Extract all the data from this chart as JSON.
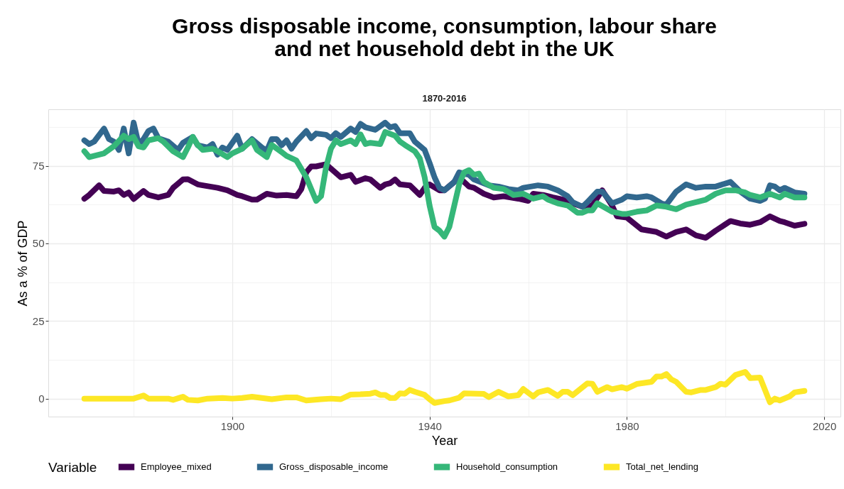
{
  "chart_data": {
    "type": "line",
    "title": "Gross disposable income, consumption, labour share\nand net household debt in the UK",
    "subtitle": "1870-2016",
    "xlabel": "Year",
    "ylabel": "As a % of GDP",
    "legend_title": "Variable",
    "legend": "bottom",
    "grid": true,
    "xlim": [
      1862.7,
      2023.3
    ],
    "ylim": [
      -5.8,
      93.2
    ],
    "xticks": [
      {
        "value": 1880,
        "label": null
      },
      1900,
      {
        "value": 1920,
        "label": null
      },
      1940,
      {
        "value": 1960,
        "label": null
      },
      1980,
      {
        "value": 2000,
        "label": null
      },
      2020
    ],
    "yticks": [
      0,
      {
        "value": 12.5,
        "label": null
      },
      25,
      {
        "value": 37.5,
        "label": null
      },
      50,
      {
        "value": 62.5,
        "label": null
      },
      75,
      {
        "value": 87.5,
        "label": null
      }
    ],
    "series": [
      {
        "name": "Employee_mixed",
        "color": "#440154",
        "x": [
          1870,
          1871,
          1873,
          1874,
          1876,
          1877,
          1878,
          1879,
          1880,
          1882,
          1883,
          1885,
          1887,
          1888,
          1890,
          1891,
          1893,
          1894,
          1897,
          1899,
          1901,
          1902,
          1904,
          1905,
          1907,
          1909,
          1911,
          1913,
          1914,
          1915,
          1916,
          1917,
          1919,
          1922,
          1924,
          1925,
          1927,
          1928,
          1930,
          1931,
          1932,
          1933,
          1934,
          1936,
          1938,
          1939,
          1940,
          1942,
          1943,
          1945,
          1946,
          1948,
          1949,
          1951,
          1953,
          1955,
          1958,
          1960,
          1961,
          1963,
          1965,
          1967,
          1969,
          1971,
          1973,
          1975,
          1977,
          1978,
          1980,
          1983,
          1986,
          1988,
          1990,
          1992,
          1994,
          1996,
          1998,
          2001,
          2003,
          2005,
          2007,
          2009,
          2011,
          2012,
          2014,
          2016
        ],
        "values": [
          64.4,
          65.6,
          68.7,
          66.9,
          66.7,
          67.1,
          65.6,
          66.4,
          64.3,
          66.9,
          65.6,
          64.8,
          65.6,
          67.9,
          70.6,
          70.7,
          69.0,
          68.7,
          67.9,
          67.1,
          65.6,
          65.2,
          64.1,
          64.1,
          66.0,
          65.4,
          65.6,
          65.2,
          67.5,
          72.9,
          74.8,
          74.8,
          75.5,
          71.3,
          72.1,
          69.8,
          71.0,
          70.6,
          67.9,
          69.0,
          69.4,
          70.6,
          69.0,
          68.7,
          65.6,
          67.9,
          69.0,
          67.1,
          67.1,
          69.8,
          71.3,
          68.3,
          67.9,
          66.0,
          64.8,
          65.2,
          64.4,
          63.7,
          66.0,
          65.6,
          64.8,
          64.1,
          62.9,
          61.8,
          62.2,
          67.1,
          62.2,
          58.7,
          58.3,
          54.5,
          53.7,
          52.2,
          53.7,
          54.5,
          52.6,
          51.8,
          54.1,
          57.2,
          56.4,
          56.0,
          56.8,
          58.7,
          57.2,
          56.8,
          55.7,
          56.3
        ]
      },
      {
        "name": "Gross_disposable_income",
        "color": "#31688e",
        "x": [
          1870,
          1871,
          1872,
          1874,
          1875,
          1876,
          1877,
          1878,
          1879,
          1880,
          1881,
          1882,
          1883,
          1884,
          1885,
          1887,
          1889,
          1890,
          1892,
          1893,
          1895,
          1896,
          1897,
          1898,
          1899,
          1901,
          1902,
          1904,
          1906,
          1907,
          1908,
          1909,
          1910,
          1911,
          1912,
          1913,
          1915,
          1916,
          1917,
          1919,
          1920,
          1921,
          1922,
          1924,
          1925,
          1926,
          1927,
          1929,
          1931,
          1932,
          1933,
          1934,
          1936,
          1937,
          1939,
          1940,
          1941,
          1942,
          1943,
          1945,
          1946,
          1948,
          1949,
          1952,
          1954,
          1956,
          1958,
          1959,
          1962,
          1964,
          1966,
          1968,
          1969,
          1971,
          1972,
          1974,
          1975,
          1977,
          1979,
          1980,
          1982,
          1984,
          1985,
          1987,
          1988,
          1990,
          1992,
          1994,
          1996,
          1998,
          2001,
          2003,
          2005,
          2007,
          2008,
          2009,
          2010,
          2011,
          2012,
          2014,
          2016
        ],
        "values": [
          83.2,
          82.0,
          82.8,
          87.0,
          83.6,
          82.8,
          80.1,
          87.0,
          79.0,
          88.9,
          82.0,
          83.6,
          86.2,
          87.0,
          83.9,
          82.8,
          80.1,
          82.4,
          84.3,
          81.6,
          80.9,
          82.0,
          78.6,
          80.9,
          80.1,
          84.7,
          80.5,
          83.6,
          80.9,
          79.8,
          83.6,
          83.6,
          81.6,
          83.2,
          80.5,
          82.8,
          86.2,
          83.9,
          85.4,
          85.0,
          83.9,
          85.5,
          84.3,
          87.0,
          85.9,
          88.5,
          87.4,
          86.6,
          88.9,
          87.4,
          87.8,
          85.5,
          85.5,
          82.8,
          80.1,
          75.9,
          71.3,
          67.9,
          67.1,
          69.8,
          72.9,
          72.1,
          70.6,
          68.7,
          68.3,
          67.5,
          67.1,
          67.9,
          68.7,
          68.3,
          67.1,
          65.2,
          63.3,
          61.8,
          63.3,
          66.7,
          66.7,
          62.9,
          64.1,
          65.2,
          64.8,
          65.2,
          64.8,
          62.9,
          62.5,
          66.7,
          69.0,
          67.9,
          68.3,
          68.3,
          69.8,
          66.7,
          64.4,
          63.7,
          64.4,
          68.7,
          68.3,
          67.1,
          67.9,
          66.4,
          66.0
        ]
      },
      {
        "name": "Household_consumption",
        "color": "#35b779",
        "x": [
          1870,
          1871,
          1873,
          1874,
          1876,
          1878,
          1879,
          1880,
          1881,
          1882,
          1883,
          1885,
          1886,
          1888,
          1890,
          1891,
          1892,
          1893,
          1894,
          1896,
          1897,
          1899,
          1900,
          1902,
          1904,
          1905,
          1907,
          1908,
          1910,
          1911,
          1913,
          1915,
          1917,
          1918,
          1919,
          1920,
          1921,
          1922,
          1924,
          1925,
          1926,
          1927,
          1928,
          1930,
          1931,
          1933,
          1934,
          1935,
          1937,
          1938,
          1939,
          1940,
          1941,
          1942,
          1943,
          1944,
          1946,
          1947,
          1948,
          1949,
          1950,
          1951,
          1953,
          1955,
          1957,
          1959,
          1961,
          1963,
          1964,
          1966,
          1968,
          1970,
          1971,
          1972,
          1973,
          1974,
          1977,
          1979,
          1980,
          1982,
          1984,
          1986,
          1988,
          1990,
          1992,
          1994,
          1996,
          1998,
          2000,
          2002,
          2004,
          2005,
          2007,
          2009,
          2011,
          2012,
          2014,
          2016
        ],
        "values": [
          79.7,
          77.8,
          78.6,
          79.0,
          81.3,
          84.7,
          83.6,
          84.3,
          81.3,
          80.9,
          83.2,
          83.9,
          82.8,
          79.7,
          77.8,
          80.9,
          84.3,
          81.7,
          80.1,
          80.5,
          79.7,
          77.8,
          79.0,
          80.5,
          83.2,
          80.1,
          77.8,
          81.7,
          79.4,
          78.2,
          76.7,
          71.3,
          63.7,
          65.2,
          74.4,
          80.5,
          83.2,
          82.0,
          83.2,
          82.0,
          85.1,
          82.0,
          82.4,
          82.0,
          85.9,
          84.7,
          82.8,
          81.7,
          79.7,
          77.4,
          71.3,
          62.2,
          55.3,
          54.1,
          52.2,
          55.3,
          69.0,
          72.9,
          73.6,
          72.1,
          72.5,
          69.8,
          67.9,
          67.5,
          65.6,
          66.0,
          64.4,
          65.2,
          64.1,
          62.9,
          62.2,
          59.9,
          59.9,
          60.6,
          60.6,
          62.9,
          60.2,
          59.5,
          59.5,
          60.2,
          60.6,
          62.2,
          61.8,
          61.0,
          62.5,
          63.3,
          64.1,
          66.0,
          67.1,
          67.1,
          66.4,
          65.6,
          64.8,
          66.0,
          64.8,
          66.0,
          64.8,
          64.8
        ]
      },
      {
        "name": "Total_net_lending",
        "color": "#fde725",
        "x": [
          1870,
          1880,
          1882,
          1883,
          1887,
          1888,
          1890,
          1891,
          1893,
          1895,
          1898,
          1900,
          1902,
          1904,
          1908,
          1911,
          1913,
          1915,
          1918,
          1920,
          1922,
          1924,
          1926,
          1928,
          1929,
          1930,
          1931,
          1932,
          1933,
          1934,
          1935,
          1936,
          1937,
          1939,
          1940,
          1941,
          1943,
          1944,
          1946,
          1947,
          1951,
          1952,
          1954,
          1956,
          1958,
          1959,
          1961,
          1962,
          1964,
          1966,
          1967,
          1968,
          1969,
          1972,
          1973,
          1974,
          1976,
          1977,
          1979,
          1980,
          1982,
          1985,
          1986,
          1987,
          1988,
          1989,
          1990,
          1992,
          1993,
          1995,
          1996,
          1998,
          1999,
          2000,
          2002,
          2004,
          2005,
          2007,
          2009,
          2010,
          2011,
          2013,
          2014,
          2016
        ],
        "values": [
          0,
          0,
          1.0,
          0,
          0,
          -0.4,
          0.6,
          -0.4,
          -0.6,
          0,
          0.2,
          0,
          0.2,
          0.6,
          -0.2,
          0.4,
          0.4,
          -0.6,
          -0.2,
          0,
          -0.2,
          1.3,
          1.4,
          1.6,
          2.0,
          1.2,
          1.2,
          0.2,
          0.2,
          1.7,
          1.6,
          2.8,
          2.2,
          1.2,
          -0.2,
          -1.4,
          -0.8,
          -0.6,
          0.3,
          1.7,
          1.5,
          0.5,
          2.2,
          0.7,
          1.1,
          3.1,
          0.7,
          2.0,
          2.8,
          0.9,
          2.2,
          2.2,
          1.1,
          4.9,
          4.8,
          2.2,
          3.7,
          3.0,
          3.7,
          3.2,
          4.7,
          5.4,
          7.1,
          7.1,
          7.9,
          6.2,
          5.4,
          2.2,
          2.0,
          2.8,
          2.8,
          3.7,
          4.8,
          4.5,
          7.6,
          8.6,
          6.6,
          6.8,
          -1.2,
          0,
          -0.6,
          0.7,
          2.0,
          2.5
        ]
      }
    ]
  }
}
